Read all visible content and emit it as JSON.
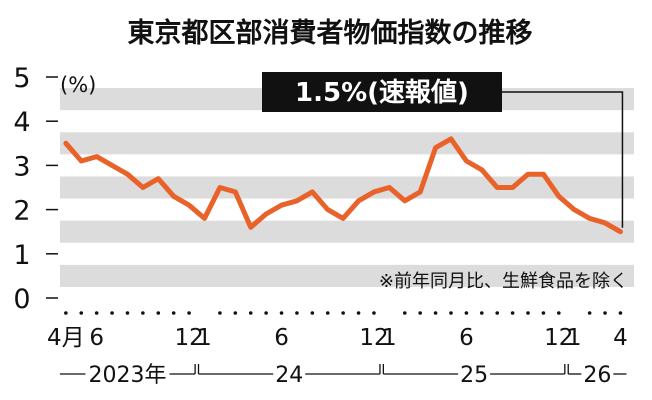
{
  "chart_data": {
    "type": "line",
    "title": "東京都区部消費者物価指数の推移",
    "unit_label": "(%)",
    "note": "※前年同月比、生鮮食品を除く",
    "callout": "1.5%(速報値)",
    "ylim": [
      0,
      5
    ],
    "yticks": [
      "0",
      "1",
      "2",
      "3",
      "4",
      "5"
    ],
    "x_month_labels": [
      {
        "index": 0,
        "text": "4月"
      },
      {
        "index": 2,
        "text": "6"
      },
      {
        "index": 8,
        "text": "12"
      },
      {
        "index": 9,
        "text": "1"
      },
      {
        "index": 14,
        "text": "6"
      },
      {
        "index": 20,
        "text": "12"
      },
      {
        "index": 21,
        "text": "1"
      },
      {
        "index": 26,
        "text": "6"
      },
      {
        "index": 32,
        "text": "12"
      },
      {
        "index": 33,
        "text": "1"
      },
      {
        "index": 36,
        "text": "4"
      }
    ],
    "year_labels": [
      {
        "start": 0,
        "end": 8,
        "text": "2023年"
      },
      {
        "start": 9,
        "end": 20,
        "text": "24"
      },
      {
        "start": 21,
        "end": 32,
        "text": "25"
      },
      {
        "start": 33,
        "end": 36,
        "text": "26"
      }
    ],
    "x": [
      "2023-04",
      "2023-05",
      "2023-06",
      "2023-07",
      "2023-08",
      "2023-09",
      "2023-10",
      "2023-11",
      "2023-12",
      "2024-01",
      "2024-02",
      "2024-03",
      "2024-04",
      "2024-05",
      "2024-06",
      "2024-07",
      "2024-08",
      "2024-09",
      "2024-10",
      "2024-11",
      "2024-12",
      "2025-01",
      "2025-02",
      "2025-03",
      "2025-04",
      "2025-05",
      "2025-06",
      "2025-07",
      "2025-08",
      "2025-09",
      "2025-10",
      "2025-11",
      "2025-12",
      "2026-01",
      "2026-02",
      "2026-03",
      "2026-04"
    ],
    "values": [
      3.5,
      3.1,
      3.2,
      3.0,
      2.8,
      2.5,
      2.7,
      2.3,
      2.1,
      1.8,
      2.5,
      2.4,
      1.6,
      1.9,
      2.1,
      2.2,
      2.4,
      2.0,
      1.8,
      2.2,
      2.4,
      2.5,
      2.2,
      2.4,
      3.4,
      3.6,
      3.1,
      2.9,
      2.5,
      2.5,
      2.8,
      2.8,
      2.3,
      2.0,
      1.8,
      1.7,
      1.5
    ],
    "line_color": "#e8622a",
    "band_color": "#dcdcdc"
  }
}
